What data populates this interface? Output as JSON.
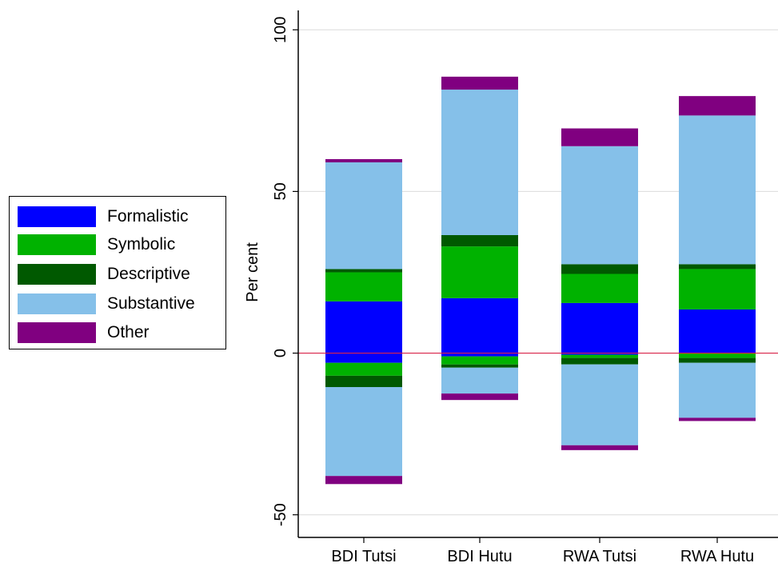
{
  "chart_data": {
    "type": "bar",
    "stacked": true,
    "diverging": true,
    "ylabel": "Per cent",
    "xlabel": "",
    "title": "",
    "ylim": [
      -57,
      106
    ],
    "yticks": [
      -50,
      0,
      50,
      100
    ],
    "ytick_labels": [
      "-50",
      "0",
      "50",
      "100"
    ],
    "grid": true,
    "zero_line_color": "#d9244a",
    "categories": [
      "BDI Tutsi",
      "BDI Hutu",
      "RWA Tutsi",
      "RWA Hutu"
    ],
    "legend": {
      "position": "left",
      "entries": [
        "Formalistic",
        "Symbolic",
        "Descriptive",
        "Substantive",
        "Other"
      ]
    },
    "series": [
      {
        "name": "Formalistic",
        "color": "#0000ff",
        "positive": [
          16,
          17,
          15.5,
          13.5
        ],
        "negative": [
          3,
          1,
          0.5,
          0
        ]
      },
      {
        "name": "Symbolic",
        "color": "#00b200",
        "positive": [
          9,
          16,
          9,
          12.5
        ],
        "negative": [
          4,
          2.5,
          1,
          1.5
        ]
      },
      {
        "name": "Descriptive",
        "color": "#005900",
        "positive": [
          1,
          3.5,
          3,
          1.5
        ],
        "negative": [
          3.5,
          1,
          2,
          1.5
        ]
      },
      {
        "name": "Substantive",
        "color": "#85c0e9",
        "positive": [
          33,
          45,
          36.5,
          46
        ],
        "negative": [
          27.5,
          8,
          25,
          17
        ]
      },
      {
        "name": "Other",
        "color": "#800080",
        "positive": [
          1,
          4,
          5.5,
          6
        ],
        "negative": [
          2.5,
          2,
          1.5,
          1
        ]
      }
    ]
  }
}
